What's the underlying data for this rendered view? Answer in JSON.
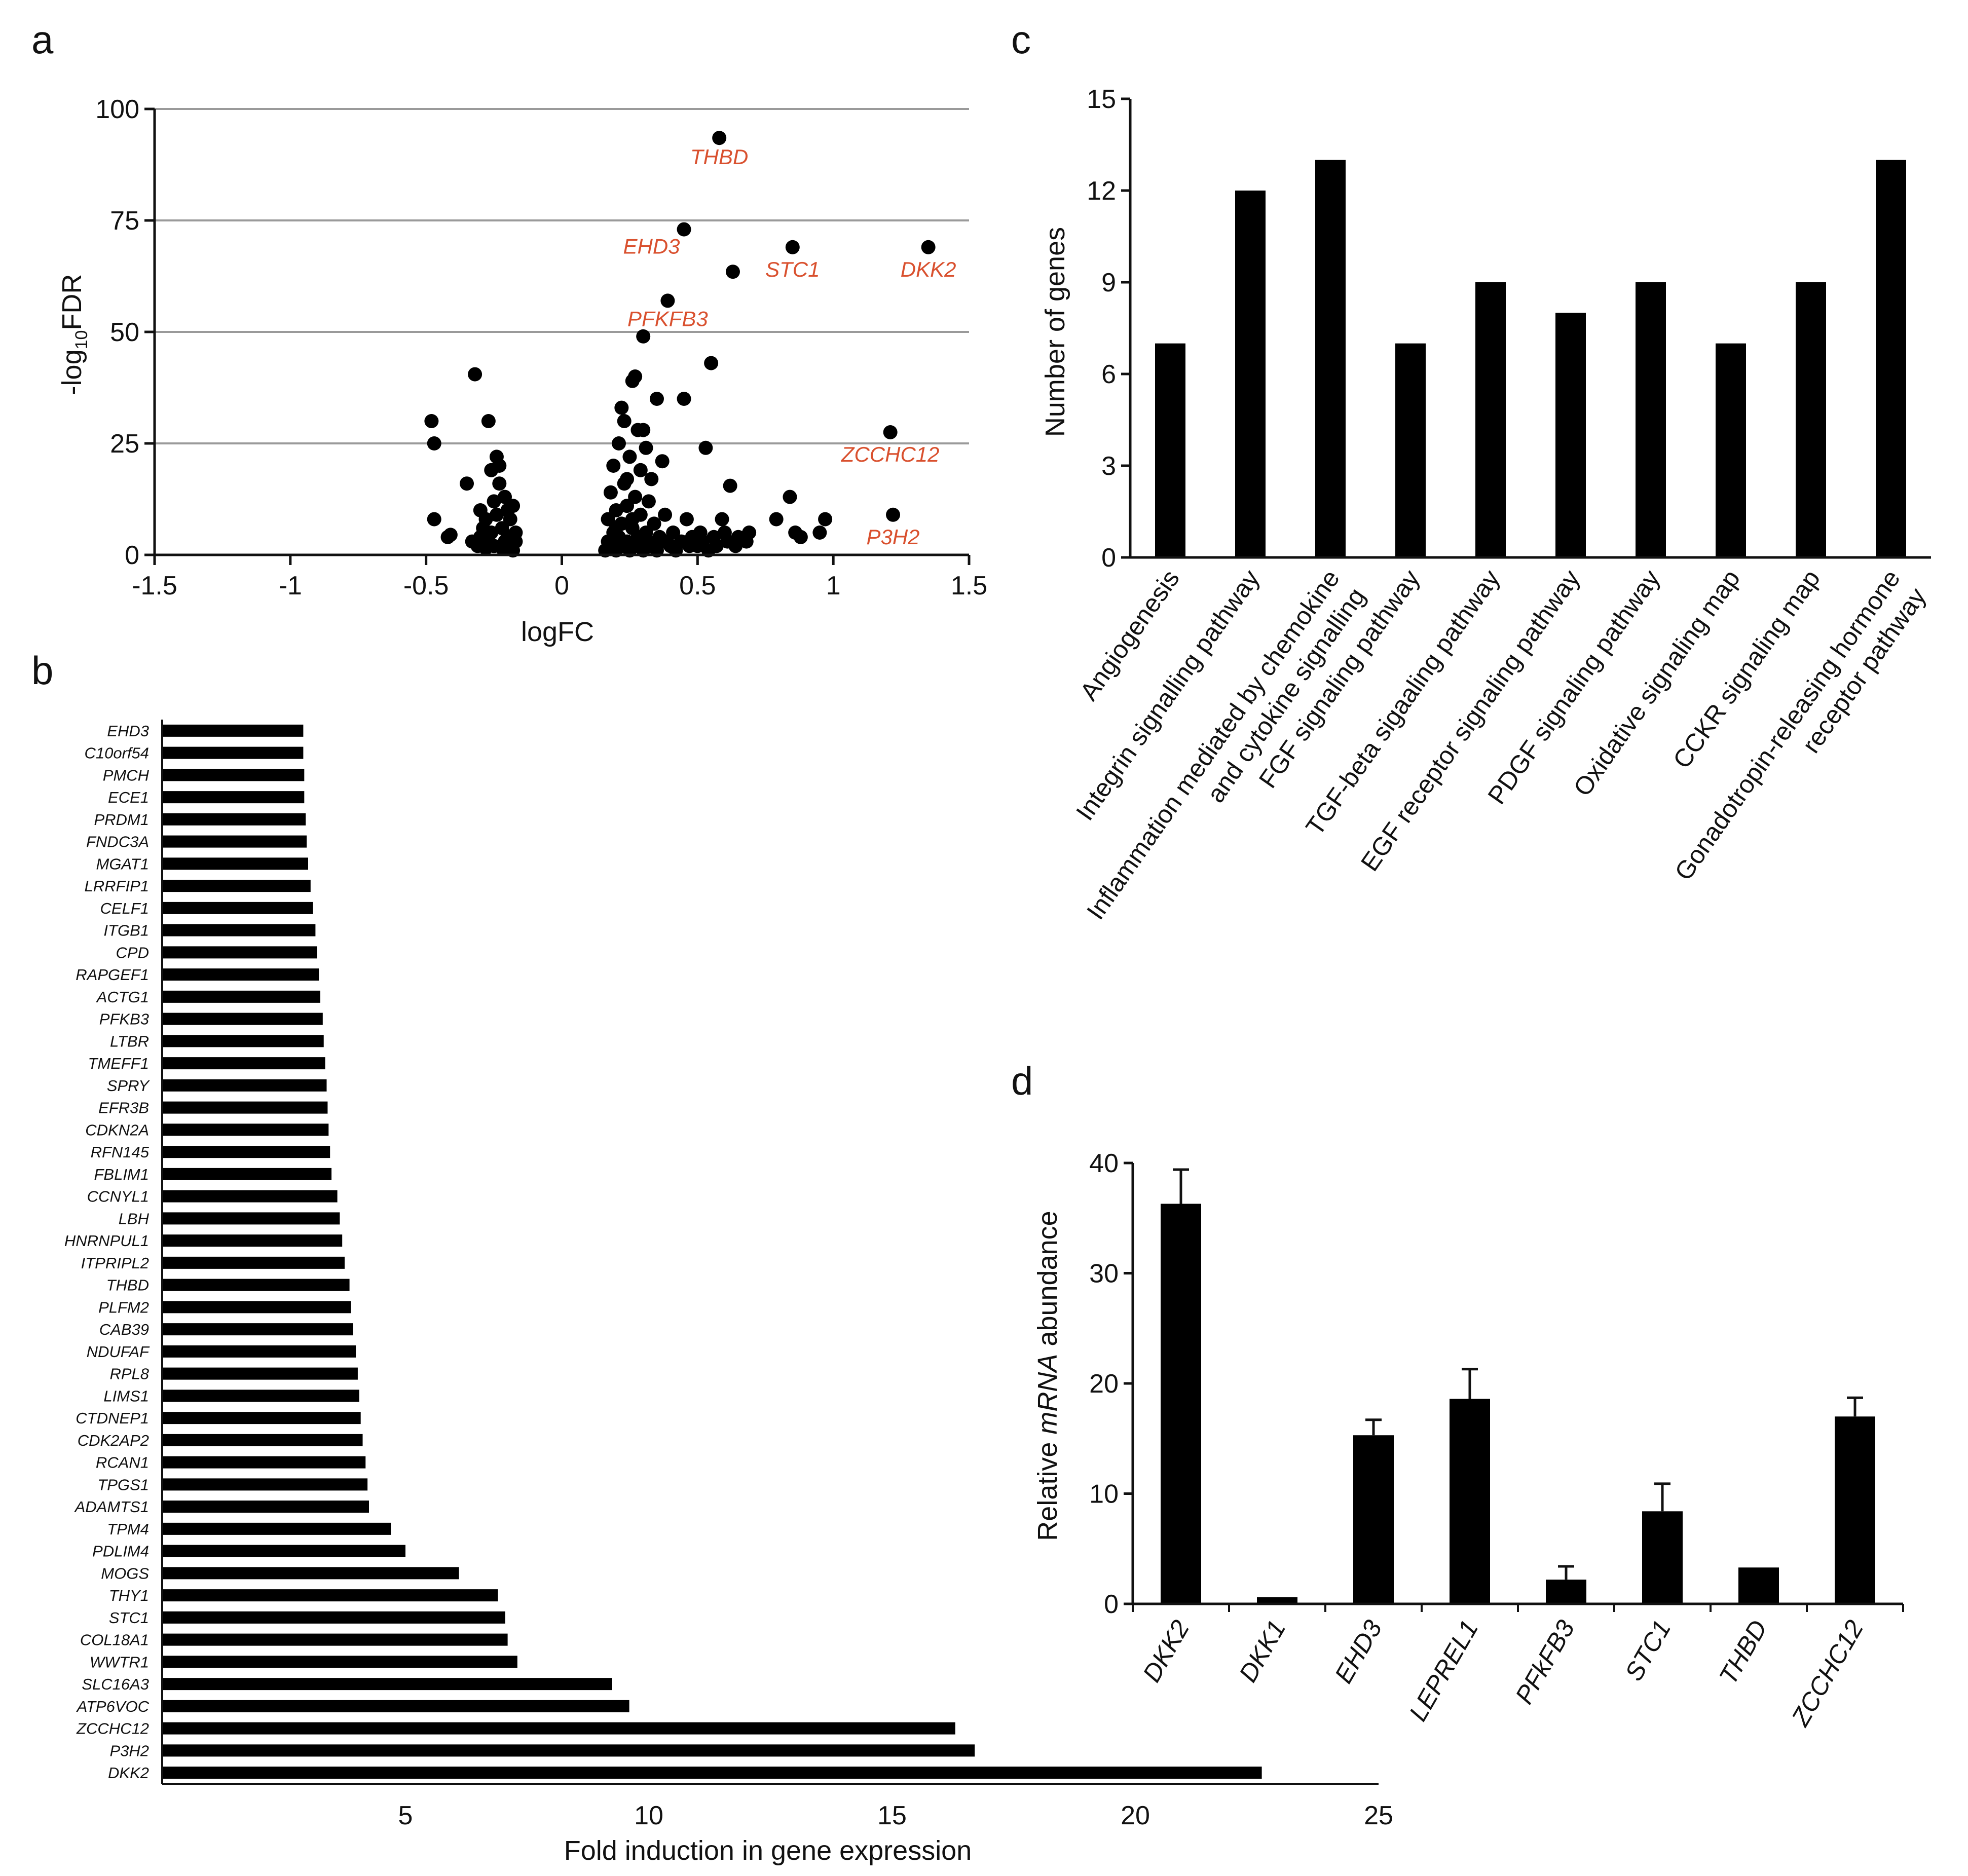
{
  "panels": {
    "a": "a",
    "b": "b",
    "c": "c",
    "d": "d"
  },
  "colors": {
    "mark": "#000000",
    "highlight": "#d9502e",
    "grid": "#9a9a9a"
  },
  "chart_data": [
    {
      "id": "a",
      "type": "scatter",
      "title": "",
      "xlabel": "logFC",
      "ylabel": {
        "prefix": "-log",
        "subscript": "10",
        "suffix": "FDR"
      },
      "xlim": [
        -1.5,
        1.5
      ],
      "ylim": [
        0,
        100
      ],
      "xticks": [
        -1.5,
        -1,
        -0.5,
        0,
        0.5,
        1,
        1.5
      ],
      "xtick_labels": [
        "-1.5",
        "-1",
        "-0.5",
        "0",
        "0.5",
        "1",
        "1.5"
      ],
      "yticks": [
        0,
        25,
        50,
        75,
        100
      ],
      "ytick_labels": [
        "0",
        "25",
        "50",
        "75",
        "100"
      ],
      "gridlines_y": [
        25,
        50,
        75,
        100
      ],
      "labeled_points": [
        {
          "label": "THBD",
          "x": 0.58,
          "y": 93.5
        },
        {
          "label": "EHD3",
          "x": 0.45,
          "y": 73
        },
        {
          "label": "STC1",
          "x": 0.85,
          "y": 69
        },
        {
          "label": "DKK2",
          "x": 1.35,
          "y": 69
        },
        {
          "label": "PFKFB3",
          "x": 0.39,
          "y": 57
        },
        {
          "label": "ZCCHC12",
          "x": 1.21,
          "y": 27.5
        },
        {
          "label": "P3H2",
          "x": 1.22,
          "y": 9
        }
      ],
      "points": [
        [
          -0.48,
          30
        ],
        [
          -0.47,
          25
        ],
        [
          -0.47,
          8
        ],
        [
          -0.42,
          4
        ],
        [
          -0.41,
          4.5
        ],
        [
          -0.35,
          16
        ],
        [
          -0.33,
          3
        ],
        [
          -0.32,
          40.5
        ],
        [
          -0.31,
          2
        ],
        [
          -0.3,
          4
        ],
        [
          -0.29,
          6
        ],
        [
          -0.28,
          8
        ],
        [
          -0.27,
          30
        ],
        [
          -0.27,
          3
        ],
        [
          -0.26,
          19
        ],
        [
          -0.26,
          5
        ],
        [
          -0.25,
          12
        ],
        [
          -0.25,
          2
        ],
        [
          -0.24,
          22
        ],
        [
          -0.24,
          9
        ],
        [
          -0.23,
          20
        ],
        [
          -0.23,
          16
        ],
        [
          -0.22,
          6
        ],
        [
          -0.22,
          1.5
        ],
        [
          -0.21,
          13
        ],
        [
          -0.21,
          3
        ],
        [
          -0.2,
          10
        ],
        [
          -0.2,
          4
        ],
        [
          -0.19,
          8
        ],
        [
          -0.19,
          2
        ],
        [
          -0.18,
          11
        ],
        [
          -0.18,
          1
        ],
        [
          -0.17,
          5
        ],
        [
          -0.17,
          3
        ],
        [
          -0.28,
          1.5
        ],
        [
          -0.3,
          10
        ],
        [
          0.16,
          1
        ],
        [
          0.17,
          3
        ],
        [
          0.17,
          8
        ],
        [
          0.18,
          2
        ],
        [
          0.18,
          14
        ],
        [
          0.19,
          5
        ],
        [
          0.19,
          20
        ],
        [
          0.2,
          1
        ],
        [
          0.2,
          10
        ],
        [
          0.21,
          4
        ],
        [
          0.21,
          25
        ],
        [
          0.22,
          2
        ],
        [
          0.22,
          7
        ],
        [
          0.23,
          16
        ],
        [
          0.23,
          30
        ],
        [
          0.24,
          3
        ],
        [
          0.24,
          11
        ],
        [
          0.25,
          1
        ],
        [
          0.25,
          22
        ],
        [
          0.26,
          6
        ],
        [
          0.26,
          39
        ],
        [
          0.27,
          2
        ],
        [
          0.27,
          13
        ],
        [
          0.27,
          40
        ],
        [
          0.28,
          4
        ],
        [
          0.28,
          28
        ],
        [
          0.29,
          9
        ],
        [
          0.29,
          19
        ],
        [
          0.3,
          1
        ],
        [
          0.3,
          49
        ],
        [
          0.31,
          5
        ],
        [
          0.31,
          24
        ],
        [
          0.32,
          3
        ],
        [
          0.32,
          12
        ],
        [
          0.33,
          2
        ],
        [
          0.33,
          17
        ],
        [
          0.34,
          7
        ],
        [
          0.35,
          35
        ],
        [
          0.35,
          1
        ],
        [
          0.36,
          4
        ],
        [
          0.37,
          21
        ],
        [
          0.38,
          3
        ],
        [
          0.38,
          9
        ],
        [
          0.4,
          2
        ],
        [
          0.41,
          5
        ],
        [
          0.42,
          1
        ],
        [
          0.44,
          3
        ],
        [
          0.45,
          35
        ],
        [
          0.46,
          8
        ],
        [
          0.47,
          2
        ],
        [
          0.48,
          4
        ],
        [
          0.5,
          2
        ],
        [
          0.51,
          5
        ],
        [
          0.52,
          3
        ],
        [
          0.53,
          24
        ],
        [
          0.54,
          1
        ],
        [
          0.55,
          43
        ],
        [
          0.56,
          4
        ],
        [
          0.57,
          2
        ],
        [
          0.59,
          8
        ],
        [
          0.6,
          5
        ],
        [
          0.61,
          3
        ],
        [
          0.62,
          15.5
        ],
        [
          0.63,
          63.5
        ],
        [
          0.64,
          2
        ],
        [
          0.65,
          4
        ],
        [
          0.68,
          3
        ],
        [
          0.69,
          5
        ],
        [
          0.79,
          8
        ],
        [
          0.84,
          13
        ],
        [
          0.86,
          5
        ],
        [
          0.88,
          4
        ],
        [
          0.95,
          5
        ],
        [
          0.97,
          8
        ],
        [
          0.22,
          33
        ],
        [
          0.24,
          17
        ],
        [
          0.3,
          28
        ],
        [
          0.2,
          6
        ],
        [
          0.26,
          8
        ],
        [
          0.28,
          2
        ]
      ]
    },
    {
      "id": "b",
      "type": "bar",
      "orientation": "horizontal",
      "title": "",
      "xlabel": "Fold induction in gene expression",
      "xlim": [
        0,
        25
      ],
      "xticks": [
        5,
        10,
        15,
        20,
        25
      ],
      "xtick_labels": [
        "5",
        "10",
        "15",
        "20",
        "25"
      ],
      "categories": [
        "EHD3",
        "C10orf54",
        "PMCH",
        "ECE1",
        "PRDM1",
        "FNDC3A",
        "MGAT1",
        "LRRFIP1",
        "CELF1",
        "ITGB1",
        "CPD",
        "RAPGEF1",
        "ACTG1",
        "PFKB3",
        "LTBR",
        "TMEFF1",
        "SPRY",
        "EFR3B",
        "CDKN2A",
        "RFN145",
        "FBLIM1",
        "CCNYL1",
        "LBH",
        "HNRNPUL1",
        "ITPRIPL2",
        "THBD",
        "PLFM2",
        "CAB39",
        "NDUFAF",
        "RPL8",
        "LIMS1",
        "CTDNEP1",
        "CDK2AP2",
        "RCAN1",
        "TPGS1",
        "ADAMTS1",
        "TPM4",
        "PDLIM4",
        "MOGS",
        "THY1",
        "STC1",
        "COL18A1",
        "WWTR1",
        "SLC16A3",
        "ATP6VOC",
        "ZCCHC12",
        "P3H2",
        "DKK2"
      ],
      "values": [
        2.9,
        2.9,
        2.92,
        2.92,
        2.95,
        2.97,
        3.0,
        3.05,
        3.1,
        3.15,
        3.18,
        3.22,
        3.25,
        3.3,
        3.32,
        3.35,
        3.38,
        3.4,
        3.42,
        3.45,
        3.48,
        3.6,
        3.65,
        3.7,
        3.75,
        3.85,
        3.88,
        3.92,
        3.98,
        4.02,
        4.05,
        4.08,
        4.12,
        4.18,
        4.22,
        4.25,
        4.7,
        5.0,
        6.1,
        6.9,
        7.05,
        7.1,
        7.3,
        9.25,
        9.6,
        16.3,
        16.7,
        22.6
      ]
    },
    {
      "id": "c",
      "type": "bar",
      "title": "",
      "xlabel": "",
      "ylabel": "Number of genes",
      "ylim": [
        0,
        15
      ],
      "yticks": [
        0,
        3,
        6,
        9,
        12,
        15
      ],
      "ytick_labels": [
        "0",
        "3",
        "6",
        "9",
        "12",
        "15"
      ],
      "categories": [
        [
          "Angiogenesis"
        ],
        [
          "Integrin signalling pathway"
        ],
        [
          "Inflammation mediated by chemokine",
          "and cytokine signalling"
        ],
        [
          "FGF signaling pathway"
        ],
        [
          "TGF-beta sigaaling pathway"
        ],
        [
          "EGF receptor signaling pathway"
        ],
        [
          "PDGF signaling pathway"
        ],
        [
          "Oxidative signaling map"
        ],
        [
          "CCKR signaling map"
        ],
        [
          "Gonadotropin-releasing hormone",
          "receptor pathway"
        ]
      ],
      "values": [
        7,
        12,
        13,
        7,
        9,
        8,
        9,
        7,
        9,
        13
      ]
    },
    {
      "id": "d",
      "type": "bar",
      "title": "",
      "xlabel": "",
      "ylabel": {
        "prefix": "Relative ",
        "italic": "mRNA",
        "suffix": " abundance"
      },
      "ylim": [
        0,
        40
      ],
      "yticks": [
        0,
        10,
        20,
        30,
        40
      ],
      "ytick_labels": [
        "0",
        "10",
        "20",
        "30",
        "40"
      ],
      "categories": [
        "DKK2",
        "DKK1",
        "EHD3",
        "LEPREL1",
        "PFkFB3",
        "STC1",
        "THBD",
        "ZCCHC12"
      ],
      "values": [
        36.3,
        0.6,
        15.3,
        18.6,
        2.2,
        8.4,
        3.3,
        17.0
      ],
      "errors": [
        3.1,
        0,
        1.4,
        2.7,
        1.2,
        2.5,
        0,
        1.7
      ]
    }
  ]
}
